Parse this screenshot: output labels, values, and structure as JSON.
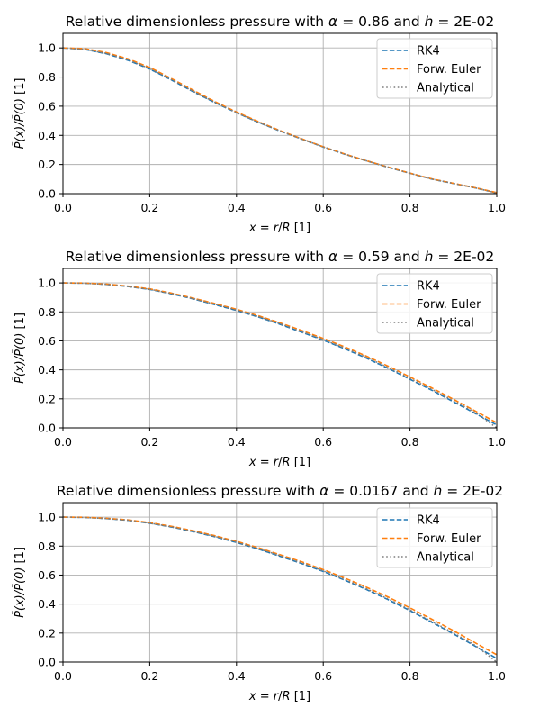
{
  "colors": {
    "rk4": "#1f77b4",
    "euler": "#ff7f0e",
    "analytical": "#7f7f7f",
    "grid": "#b0b0b0"
  },
  "chart_data": [
    {
      "type": "line",
      "title": "Relative dimensionless pressure with α = 0.86 and h = 2E-02",
      "title_parts": {
        "pre": "Relative dimensionless pressure with ",
        "a": "α",
        "aval": " = 0.86 and ",
        "h": "h",
        "hval": " = 2E-02"
      },
      "xlabel": "x = r/R  [1]",
      "ylabel": "P̄(x)/P̄(0)  [1]",
      "xlim": [
        0,
        1
      ],
      "ylim": [
        0,
        1.1
      ],
      "xticks": [
        "0.0",
        "0.2",
        "0.4",
        "0.6",
        "0.8",
        "1.0"
      ],
      "yticks": [
        "0.0",
        "0.2",
        "0.4",
        "0.6",
        "0.8",
        "1.0"
      ],
      "grid": true,
      "legend_position": "top-right",
      "x": [
        0.0,
        0.05,
        0.1,
        0.15,
        0.2,
        0.25,
        0.3,
        0.35,
        0.4,
        0.45,
        0.5,
        0.55,
        0.6,
        0.65,
        0.7,
        0.75,
        0.8,
        0.85,
        0.9,
        0.95,
        1.0
      ],
      "series": [
        {
          "name": "RK4",
          "style": "dashed",
          "values": [
            1.0,
            0.99,
            0.96,
            0.915,
            0.855,
            0.78,
            0.7,
            0.625,
            0.555,
            0.49,
            0.43,
            0.375,
            0.32,
            0.27,
            0.225,
            0.18,
            0.14,
            0.1,
            0.07,
            0.04,
            0.005
          ]
        },
        {
          "name": "Forw. Euler",
          "style": "dashed",
          "values": [
            1.0,
            0.995,
            0.968,
            0.925,
            0.866,
            0.79,
            0.71,
            0.632,
            0.56,
            0.495,
            0.433,
            0.377,
            0.322,
            0.272,
            0.226,
            0.182,
            0.141,
            0.102,
            0.071,
            0.041,
            0.007
          ]
        },
        {
          "name": "Analytical",
          "style": "dotted",
          "values": [
            1.0,
            0.99,
            0.962,
            0.918,
            0.858,
            0.782,
            0.703,
            0.627,
            0.556,
            0.491,
            0.431,
            0.376,
            0.321,
            0.271,
            0.225,
            0.181,
            0.14,
            0.101,
            0.07,
            0.04,
            0.004
          ]
        }
      ]
    },
    {
      "type": "line",
      "title": "Relative dimensionless pressure with α = 0.59 and h = 2E-02",
      "title_parts": {
        "pre": "Relative dimensionless pressure with ",
        "a": "α",
        "aval": " = 0.59 and ",
        "h": "h",
        "hval": " = 2E-02"
      },
      "xlabel": "x = r/R  [1]",
      "ylabel": "P̄(x)/P̄(0)  [1]",
      "xlim": [
        0,
        1
      ],
      "ylim": [
        0,
        1.1
      ],
      "xticks": [
        "0.0",
        "0.2",
        "0.4",
        "0.6",
        "0.8",
        "1.0"
      ],
      "yticks": [
        "0.0",
        "0.2",
        "0.4",
        "0.6",
        "0.8",
        "1.0"
      ],
      "grid": true,
      "legend_position": "top-right",
      "x": [
        0.0,
        0.05,
        0.1,
        0.15,
        0.2,
        0.25,
        0.3,
        0.35,
        0.4,
        0.45,
        0.5,
        0.55,
        0.6,
        0.65,
        0.7,
        0.75,
        0.8,
        0.85,
        0.9,
        0.95,
        1.0
      ],
      "series": [
        {
          "name": "RK4",
          "style": "dashed",
          "values": [
            1.0,
            0.998,
            0.99,
            0.975,
            0.955,
            0.925,
            0.89,
            0.85,
            0.81,
            0.765,
            0.715,
            0.66,
            0.605,
            0.545,
            0.48,
            0.41,
            0.335,
            0.26,
            0.18,
            0.1,
            0.02
          ]
        },
        {
          "name": "Forw. Euler",
          "style": "dashed",
          "values": [
            1.0,
            0.999,
            0.992,
            0.978,
            0.959,
            0.93,
            0.895,
            0.858,
            0.818,
            0.774,
            0.725,
            0.672,
            0.617,
            0.558,
            0.494,
            0.425,
            0.351,
            0.276,
            0.197,
            0.117,
            0.035
          ]
        },
        {
          "name": "Analytical",
          "style": "dotted",
          "values": [
            1.0,
            0.998,
            0.99,
            0.976,
            0.956,
            0.927,
            0.892,
            0.853,
            0.813,
            0.768,
            0.719,
            0.664,
            0.609,
            0.55,
            0.486,
            0.416,
            0.341,
            0.266,
            0.187,
            0.107,
            0.0
          ]
        }
      ]
    },
    {
      "type": "line",
      "title": "Relative dimensionless pressure with α = 0.0167 and h = 2E-02",
      "title_parts": {
        "pre": "Relative dimensionless pressure with ",
        "a": "α",
        "aval": " = 0.0167 and ",
        "h": "h",
        "hval": " = 2E-02"
      },
      "xlabel": "x = r/R  [1]",
      "ylabel": "P̄(x)/P̄(0)  [1]",
      "xlim": [
        0,
        1
      ],
      "ylim": [
        0,
        1.1
      ],
      "xticks": [
        "0.0",
        "0.2",
        "0.4",
        "0.6",
        "0.8",
        "1.0"
      ],
      "yticks": [
        "0.0",
        "0.2",
        "0.4",
        "0.6",
        "0.8",
        "1.0"
      ],
      "grid": true,
      "legend_position": "top-right",
      "x": [
        0.0,
        0.05,
        0.1,
        0.15,
        0.2,
        0.25,
        0.3,
        0.35,
        0.4,
        0.45,
        0.5,
        0.55,
        0.6,
        0.65,
        0.7,
        0.75,
        0.8,
        0.85,
        0.9,
        0.95,
        1.0
      ],
      "series": [
        {
          "name": "RK4",
          "style": "dashed",
          "values": [
            1.0,
            0.998,
            0.99,
            0.978,
            0.958,
            0.932,
            0.9,
            0.865,
            0.825,
            0.78,
            0.73,
            0.68,
            0.625,
            0.565,
            0.5,
            0.43,
            0.355,
            0.275,
            0.195,
            0.11,
            0.025
          ]
        },
        {
          "name": "Forw. Euler",
          "style": "dashed",
          "values": [
            1.0,
            0.999,
            0.992,
            0.981,
            0.962,
            0.937,
            0.906,
            0.872,
            0.833,
            0.789,
            0.741,
            0.692,
            0.638,
            0.579,
            0.516,
            0.448,
            0.374,
            0.296,
            0.217,
            0.133,
            0.05
          ]
        },
        {
          "name": "Analytical",
          "style": "dotted",
          "values": [
            1.0,
            0.998,
            0.99,
            0.979,
            0.959,
            0.933,
            0.902,
            0.867,
            0.828,
            0.783,
            0.734,
            0.684,
            0.629,
            0.569,
            0.505,
            0.435,
            0.36,
            0.281,
            0.201,
            0.116,
            0.0
          ]
        }
      ]
    }
  ]
}
